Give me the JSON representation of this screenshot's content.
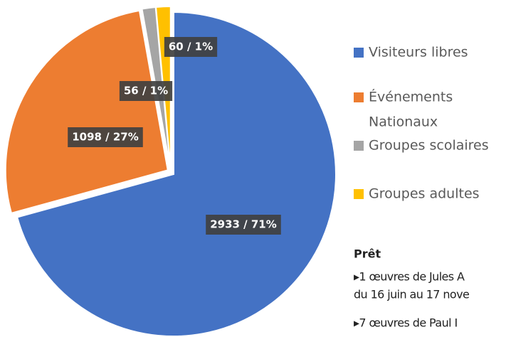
{
  "chart_data": {
    "type": "pie",
    "categories": [
      "Visiteurs libres",
      "Événements Nationaux",
      "Groupes scolaires",
      "Groupes adultes"
    ],
    "legend_lines": [
      [
        "Visiteurs libres"
      ],
      [
        "Événements",
        "Nationaux"
      ],
      [
        "Groupes scolaires"
      ],
      [
        "Groupes adultes"
      ]
    ],
    "values": [
      2933,
      1098,
      56,
      60
    ],
    "value_labels": [
      "2933 / 71%",
      "1098 / 27%",
      "56 / 1%",
      "60 / 1%"
    ],
    "colors": [
      "#4472c4",
      "#ed7d31",
      "#a5a5a5",
      "#ffc000"
    ],
    "legend": "right"
  },
  "notes": {
    "heading": "Prêt",
    "lines": [
      "▸1 œuvres de Jules A",
      "du 16 juin au 17 nove",
      "▸7 œuvres de Paul I"
    ]
  }
}
